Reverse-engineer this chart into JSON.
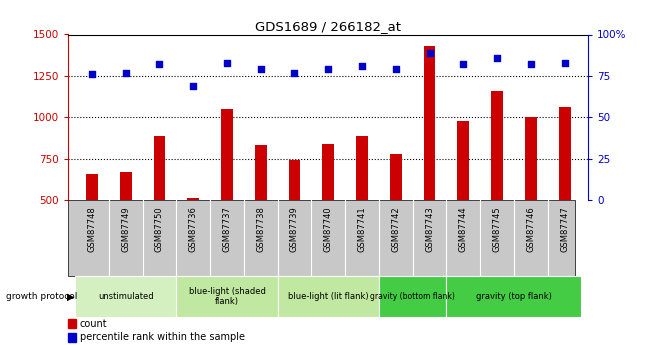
{
  "title": "GDS1689 / 266182_at",
  "categories": [
    "GSM87748",
    "GSM87749",
    "GSM87750",
    "GSM87736",
    "GSM87737",
    "GSM87738",
    "GSM87739",
    "GSM87740",
    "GSM87741",
    "GSM87742",
    "GSM87743",
    "GSM87744",
    "GSM87745",
    "GSM87746",
    "GSM87747"
  ],
  "count_values": [
    660,
    670,
    890,
    510,
    1050,
    830,
    740,
    840,
    890,
    780,
    1430,
    980,
    1160,
    1000,
    1060
  ],
  "percentile_values": [
    76,
    77,
    82,
    69,
    83,
    79,
    77,
    79,
    81,
    79,
    89,
    82,
    86,
    82,
    83
  ],
  "ylim_left": [
    500,
    1500
  ],
  "ylim_right": [
    0,
    100
  ],
  "yticks_left": [
    500,
    750,
    1000,
    1250,
    1500
  ],
  "yticks_right": [
    0,
    25,
    50,
    75,
    100
  ],
  "groups": [
    {
      "label": "unstimulated",
      "start": 0,
      "end": 3,
      "color": "#d4f0c0"
    },
    {
      "label": "blue-light (shaded\nflank)",
      "start": 3,
      "end": 6,
      "color": "#c0e8a0"
    },
    {
      "label": "blue-light (lit flank)",
      "start": 6,
      "end": 9,
      "color": "#c0e8a0"
    },
    {
      "label": "gravity (bottom flank)",
      "start": 9,
      "end": 11,
      "color": "#44cc44"
    },
    {
      "label": "gravity (top flank)",
      "start": 11,
      "end": 15,
      "color": "#44cc44"
    }
  ],
  "bar_color": "#cc0000",
  "dot_color": "#0000cc",
  "tick_color_left": "#cc0000",
  "tick_color_right": "#0000cc",
  "label_count": "count",
  "label_percentile": "percentile rank within the sample",
  "growth_protocol_label": "growth protocol",
  "x_background": "#c8c8c8"
}
